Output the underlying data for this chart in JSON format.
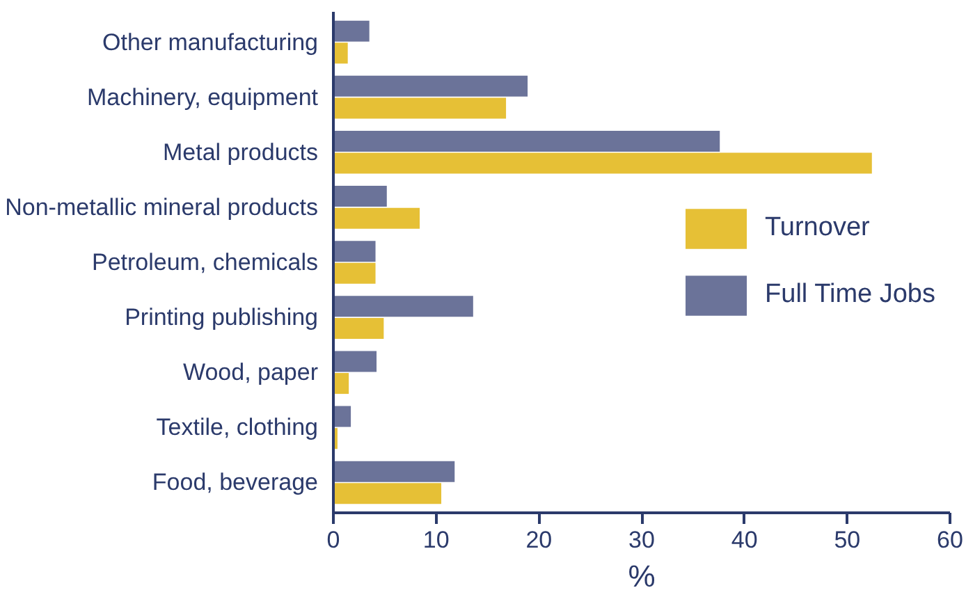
{
  "chart_data": {
    "type": "bar",
    "orientation": "horizontal",
    "xlabel": "%",
    "categories": [
      "Other manufacturing",
      "Machinery, equipment",
      "Metal products",
      "Non-metallic mineral products",
      "Petroleum, chemicals",
      "Printing publishing",
      "Wood, paper",
      "Textile, clothing",
      "Food, beverage"
    ],
    "series": [
      {
        "name": "Turnover",
        "color": "#e6c036",
        "values": [
          1.4,
          16.8,
          52.4,
          8.4,
          4.1,
          4.9,
          1.5,
          0.4,
          10.5
        ]
      },
      {
        "name": "Full Time Jobs",
        "color": "#6b7399",
        "values": [
          3.5,
          18.9,
          37.6,
          5.2,
          4.1,
          13.6,
          4.2,
          1.7,
          11.8
        ]
      }
    ],
    "xlim": [
      0,
      60
    ],
    "xticks": [
      0,
      10,
      20,
      30,
      40,
      50,
      60
    ],
    "grid": false,
    "legend": "right"
  }
}
